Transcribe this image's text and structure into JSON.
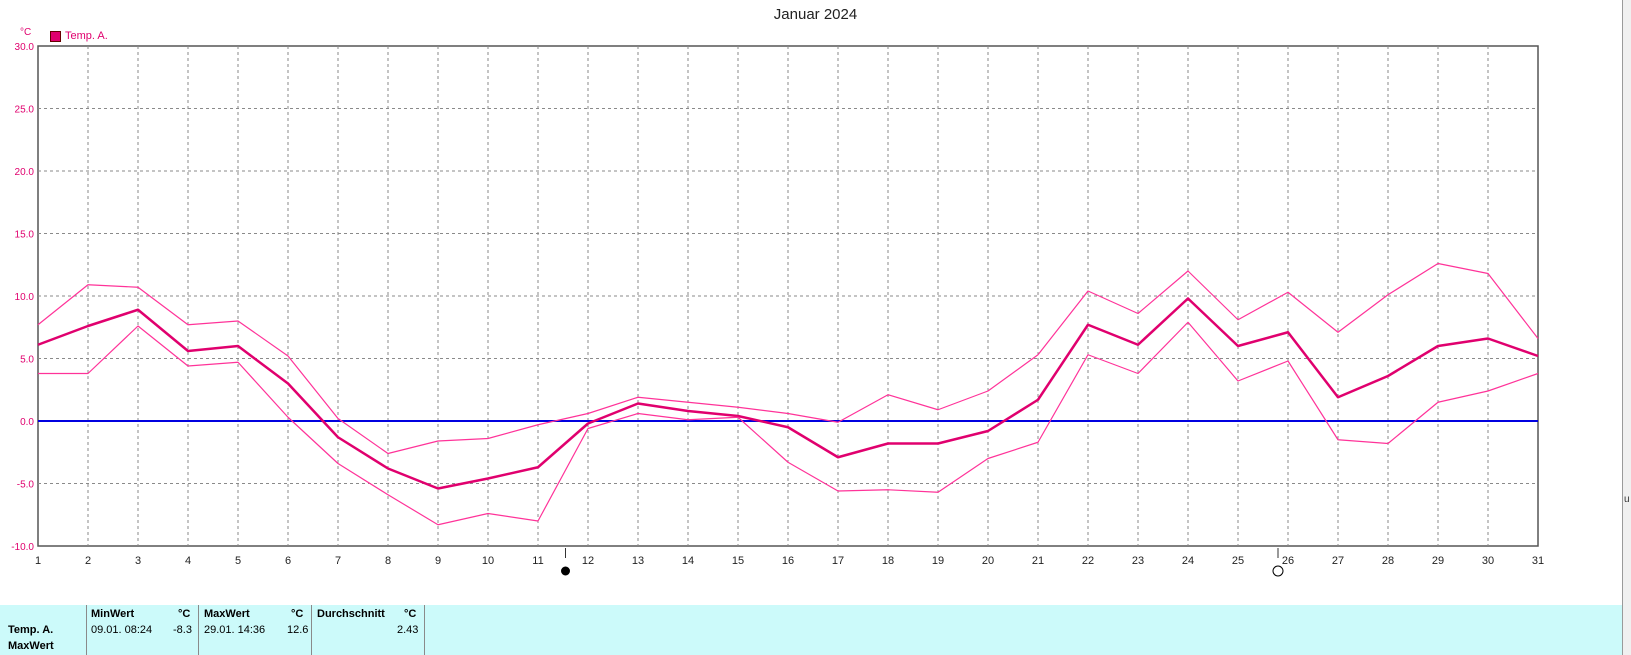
{
  "chart_data": {
    "type": "line",
    "title": "Januar 2024",
    "ylabel": "°C",
    "ylim": [
      -10,
      30
    ],
    "ytick_labels": [
      "-10.0",
      "-5.0",
      "0.0",
      "5.0",
      "10.0",
      "15.0",
      "20.0",
      "25.0",
      "30.0"
    ],
    "yticks": [
      -10,
      -5,
      0,
      5,
      10,
      15,
      20,
      25,
      30
    ],
    "xlim": [
      1,
      31
    ],
    "x": [
      1,
      2,
      3,
      4,
      5,
      6,
      7,
      8,
      9,
      10,
      11,
      12,
      13,
      14,
      15,
      16,
      17,
      18,
      19,
      20,
      21,
      22,
      23,
      24,
      25,
      26,
      27,
      28,
      29,
      30,
      31
    ],
    "xtick_labels": [
      "1",
      "2",
      "3",
      "4",
      "5",
      "6",
      "7",
      "8",
      "9",
      "10",
      "11",
      "12",
      "13",
      "14",
      "15",
      "16",
      "17",
      "18",
      "19",
      "20",
      "21",
      "22",
      "23",
      "24",
      "25",
      "26",
      "27",
      "28",
      "29",
      "30",
      "31"
    ],
    "legend": [
      {
        "label": "Temp. A.",
        "color": "#e0006e"
      }
    ],
    "grid": true,
    "zero_line_color": "#0000e0",
    "series": [
      {
        "role": "max",
        "color": "#ff3399",
        "values": [
          7.7,
          10.9,
          10.7,
          7.7,
          8.0,
          5.2,
          0.2,
          -2.6,
          -1.6,
          -1.4,
          -0.3,
          0.6,
          1.9,
          1.5,
          1.1,
          0.6,
          -0.1,
          2.1,
          0.9,
          2.4,
          5.3,
          10.4,
          8.6,
          12.0,
          8.1,
          10.3,
          7.1,
          10.1,
          12.6,
          11.8,
          6.6
        ]
      },
      {
        "role": "avg",
        "color": "#e0006e",
        "values": [
          6.1,
          7.6,
          8.9,
          5.6,
          6.0,
          3.0,
          -1.3,
          -3.8,
          -5.4,
          -4.6,
          -3.7,
          -0.2,
          1.4,
          0.8,
          0.4,
          -0.5,
          -2.9,
          -1.8,
          -1.8,
          -0.8,
          1.7,
          7.7,
          6.1,
          9.8,
          6.0,
          7.1,
          1.9,
          3.6,
          6.0,
          6.6,
          5.2
        ]
      },
      {
        "role": "min",
        "color": "#ff3399",
        "values": [
          3.8,
          3.8,
          7.6,
          4.4,
          4.7,
          0.3,
          -3.4,
          -5.9,
          -8.3,
          -7.4,
          -8.0,
          -0.6,
          0.6,
          0.1,
          0.3,
          -3.3,
          -5.6,
          -5.5,
          -5.7,
          -3.0,
          -1.7,
          5.3,
          3.8,
          7.9,
          3.2,
          4.8,
          -1.5,
          -1.8,
          1.5,
          2.4,
          3.8
        ]
      }
    ],
    "moon_phases": [
      {
        "x": 11.55,
        "symbol": "●"
      },
      {
        "x": 25.8,
        "symbol": "○"
      }
    ]
  },
  "stats": {
    "headers": {
      "min": "MinWert",
      "max": "MaxWert",
      "avg": "Durchschnitt",
      "unit": "°C"
    },
    "row_label": "Temp. A.",
    "row_label_2": "MaxWert",
    "min_time": "09.01.  08:24",
    "min_value": "-8.3",
    "max_time": "29.01.  14:36",
    "max_value": "12.6",
    "avg_value": "2.43"
  }
}
